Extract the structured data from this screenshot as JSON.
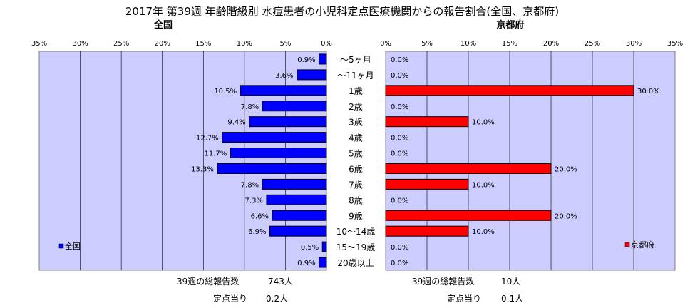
{
  "chart_data": {
    "type": "bar",
    "title": "2017年 第39週 年齢階級別 水痘患者の小児科定点医療機関からの報告割合(全国、京都府)",
    "categories": [
      "～5ヶ月",
      "～11ヶ月",
      "1歳",
      "2歳",
      "3歳",
      "4歳",
      "5歳",
      "6歳",
      "7歳",
      "8歳",
      "9歳",
      "10～14歳",
      "15～19歳",
      "20歳以上"
    ],
    "x_ticks": [
      "0%",
      "5%",
      "10%",
      "15%",
      "20%",
      "25%",
      "30%",
      "35%"
    ],
    "xlim": [
      0,
      35
    ],
    "grid": true,
    "series": [
      {
        "name": "全国",
        "panel_title": "全国",
        "color": "#0000ff",
        "legend_position": "bottom-left",
        "values": [
          0.9,
          3.6,
          10.5,
          7.8,
          9.4,
          12.7,
          11.7,
          13.3,
          7.8,
          7.3,
          6.6,
          6.9,
          0.5,
          0.9
        ],
        "labels": [
          "0.9%",
          "3.6%",
          "10.5%",
          "7.8%",
          "9.4%",
          "12.7%",
          "11.7%",
          "13.3%",
          "7.8%",
          "7.3%",
          "6.6%",
          "6.9%",
          "0.5%",
          "0.9%"
        ]
      },
      {
        "name": "京都府",
        "panel_title": "京都府",
        "color": "#ff0000",
        "legend_position": "bottom-right",
        "values": [
          0,
          0,
          30,
          0,
          10,
          0,
          0,
          20,
          10,
          0,
          20,
          10,
          0,
          0
        ],
        "labels": [
          "0.0%",
          "0.0%",
          "30.0%",
          "0.0%",
          "10.0%",
          "0.0%",
          "0.0%",
          "20.0%",
          "10.0%",
          "0.0%",
          "20.0%",
          "10.0%",
          "0.0%",
          "0.0%"
        ]
      }
    ]
  },
  "footer": {
    "national": {
      "total_label": "39週の総報告数",
      "total_value": "743人",
      "per_label": "定点当り",
      "per_value": "0.2人"
    },
    "kyoto": {
      "total_label": "39週の総報告数",
      "total_value": "10人",
      "per_label": "定点当り",
      "per_value": "0.1人"
    }
  },
  "colors": {
    "plot_bg": "#ccccff",
    "grid": "#000000"
  }
}
